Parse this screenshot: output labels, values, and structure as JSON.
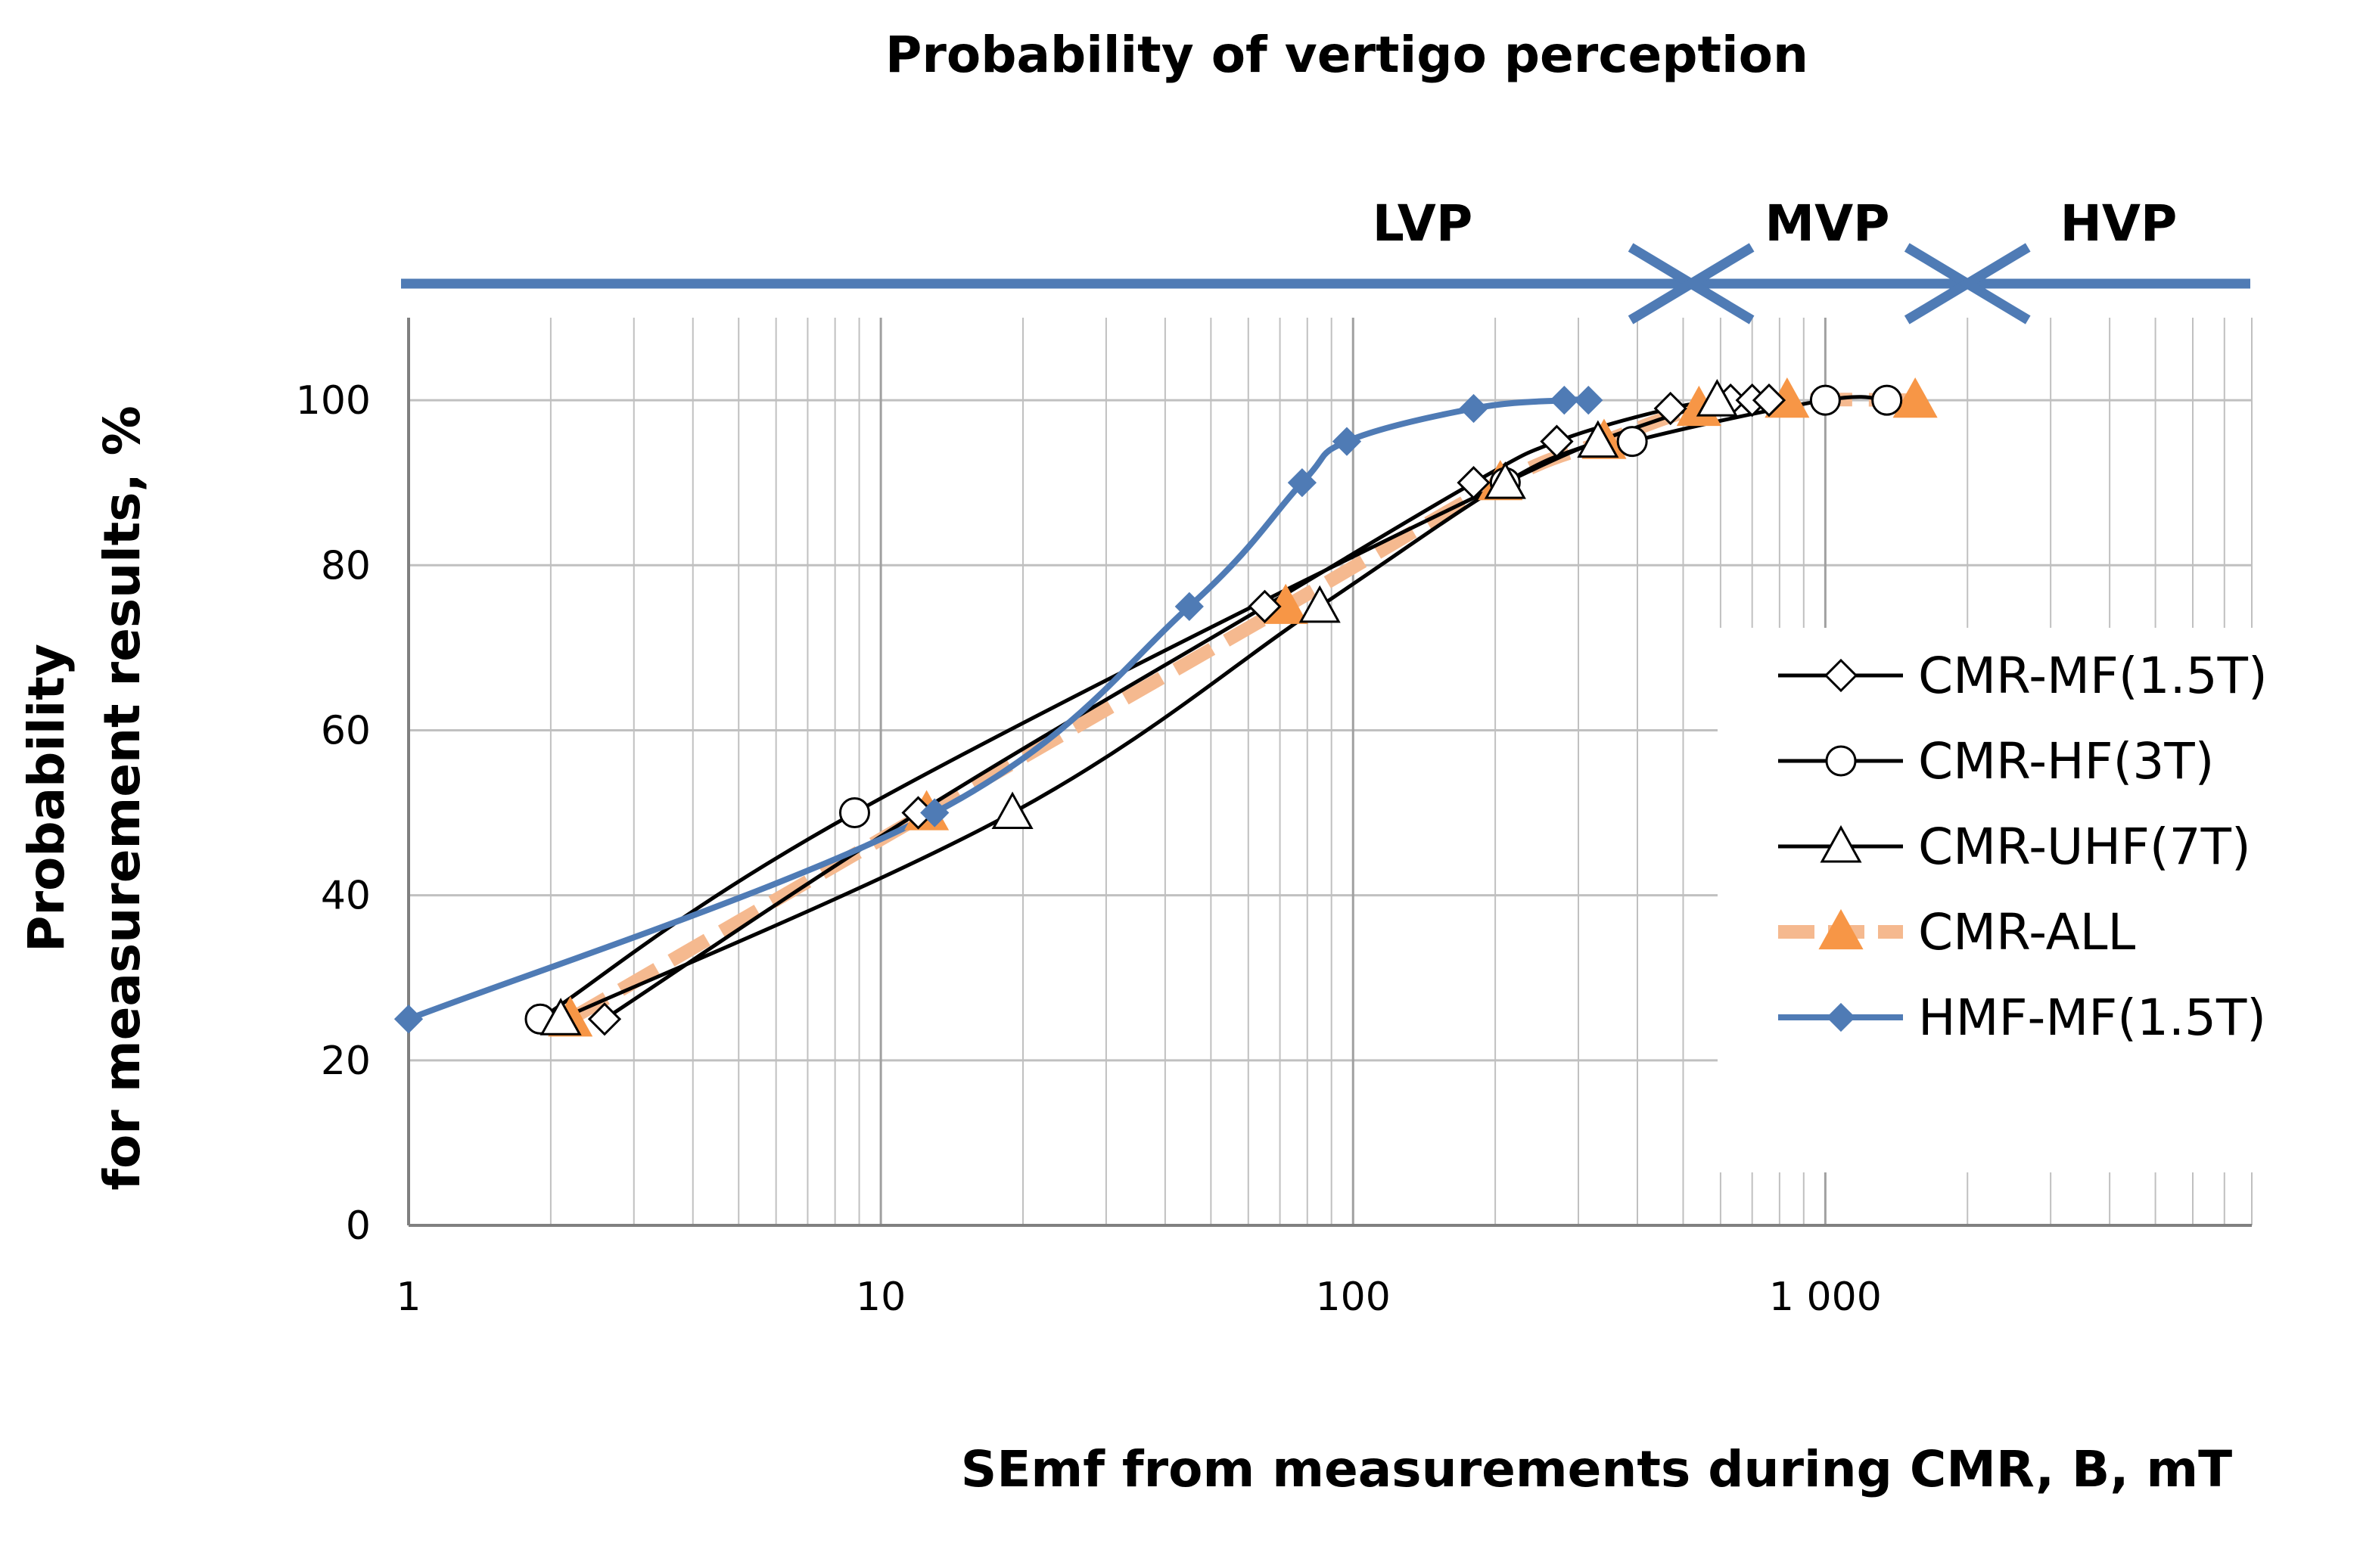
{
  "chart_data": {
    "type": "line",
    "title": "Probability of vertigo perception",
    "xlabel": "SEmf from measurements during CMR, B, mT",
    "ylabel": [
      "Probability",
      "for measurement results, %"
    ],
    "xscale": "log",
    "xlim": [
      1,
      8000
    ],
    "ylim": [
      0,
      110
    ],
    "xticks": [
      1,
      10,
      100,
      1000
    ],
    "xtick_labels": [
      "1",
      "10",
      "100",
      "1 000"
    ],
    "yticks": [
      0,
      20,
      40,
      60,
      80,
      100
    ],
    "ytick_labels": [
      "0",
      "20",
      "40",
      "60",
      "80",
      "100"
    ],
    "grid": true,
    "legend_position": "right",
    "colors": {
      "blue": "#4f7bb5",
      "orange": "#f79646",
      "orange_light": "#f5b98f",
      "black": "#000000",
      "grid": "#c0c0c0"
    },
    "zones": [
      {
        "label": "LVP",
        "from": 1,
        "to": 520
      },
      {
        "label": "MVP",
        "from": 520,
        "to": 2000
      },
      {
        "label": "HVP",
        "from": 2000,
        "to": 8000
      }
    ],
    "series": [
      {
        "name": "CMR-MF(1.5T)",
        "marker": "diamond",
        "style": "black",
        "x": [
          2.6,
          12,
          65,
          180,
          270,
          470,
          630,
          700,
          760
        ],
        "y": [
          25,
          50,
          75,
          90,
          95,
          99,
          100,
          100,
          100
        ]
      },
      {
        "name": "CMR-HF(3T)",
        "marker": "circle",
        "style": "black",
        "x": [
          1.9,
          8.8,
          210,
          390,
          1000,
          1350
        ],
        "y": [
          25,
          50,
          90,
          95,
          100,
          100
        ]
      },
      {
        "name": "CMR-UHF(7T)",
        "marker": "triangle",
        "style": "black",
        "x": [
          2.1,
          19,
          85,
          210,
          330,
          590
        ],
        "y": [
          25,
          50,
          75,
          90,
          95,
          100
        ]
      },
      {
        "name": "CMR-ALL",
        "marker": "triangle-filled",
        "style": "orange-dashed",
        "x": [
          2.2,
          12.5,
          72,
          205,
          340,
          540,
          830,
          1550
        ],
        "y": [
          25,
          50,
          75,
          90,
          95,
          99,
          100,
          100
        ]
      },
      {
        "name": "HMF-MF(1.5T)",
        "marker": "diamond-filled",
        "style": "blue",
        "x": [
          1,
          13,
          45,
          78,
          97,
          180,
          280,
          315
        ],
        "y": [
          25,
          50,
          75,
          90,
          95,
          99,
          100,
          100
        ]
      }
    ]
  }
}
